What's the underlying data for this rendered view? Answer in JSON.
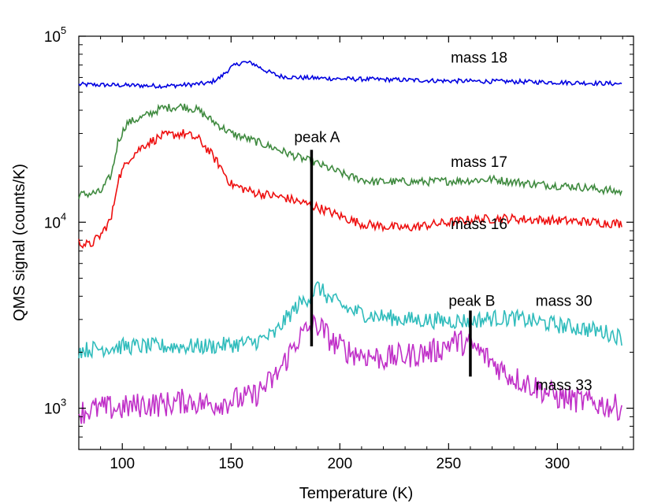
{
  "chart_data": {
    "type": "line",
    "xlabel": "Temperature (K)",
    "ylabel": "QMS signal (counts/K)",
    "xlim": [
      80,
      335
    ],
    "ylim": [
      600,
      100000
    ],
    "yscale": "log",
    "grid": false,
    "x_ticks": [
      {
        "value": 100,
        "label": "100"
      },
      {
        "value": 150,
        "label": "150"
      },
      {
        "value": 200,
        "label": "200"
      },
      {
        "value": 250,
        "label": "250"
      },
      {
        "value": 300,
        "label": "300"
      }
    ],
    "y_ticks": [
      {
        "value": 1000,
        "base": "10",
        "exp": "3"
      },
      {
        "value": 10000,
        "base": "10",
        "exp": "4"
      },
      {
        "value": 100000,
        "base": "10",
        "exp": "5"
      }
    ],
    "series": [
      {
        "name": "mass 18",
        "color": "#0000e0",
        "label_at": [
          251,
          72000
        ],
        "points": [
          [
            80,
            55000
          ],
          [
            100,
            54500
          ],
          [
            120,
            54000
          ],
          [
            130,
            54800
          ],
          [
            140,
            56000
          ],
          [
            145,
            60000
          ],
          [
            150,
            68000
          ],
          [
            155,
            72500
          ],
          [
            160,
            71500
          ],
          [
            165,
            66000
          ],
          [
            172,
            61000
          ],
          [
            180,
            60000
          ],
          [
            200,
            59000
          ],
          [
            220,
            58500
          ],
          [
            250,
            57500
          ],
          [
            280,
            57000
          ],
          [
            300,
            56500
          ],
          [
            330,
            55500
          ]
        ]
      },
      {
        "name": "mass 17",
        "color": "#3f8a3f",
        "label_at": [
          251,
          19800
        ],
        "points": [
          [
            80,
            14000
          ],
          [
            90,
            14500
          ],
          [
            95,
            18000
          ],
          [
            98,
            27000
          ],
          [
            102,
            34000
          ],
          [
            110,
            37000
          ],
          [
            118,
            41000
          ],
          [
            128,
            42000
          ],
          [
            135,
            40000
          ],
          [
            140,
            36000
          ],
          [
            150,
            30000
          ],
          [
            160,
            27500
          ],
          [
            170,
            25000
          ],
          [
            180,
            22500
          ],
          [
            188,
            21000
          ],
          [
            195,
            19500
          ],
          [
            205,
            17500
          ],
          [
            215,
            16500
          ],
          [
            225,
            16500
          ],
          [
            240,
            16500
          ],
          [
            260,
            16800
          ],
          [
            270,
            17000
          ],
          [
            290,
            16000
          ],
          [
            310,
            15500
          ],
          [
            330,
            14500
          ]
        ]
      },
      {
        "name": "mass 16",
        "color": "#ee1010",
        "label_at": [
          251,
          9200
        ],
        "points": [
          [
            80,
            7800
          ],
          [
            85,
            7500
          ],
          [
            90,
            8500
          ],
          [
            95,
            10500
          ],
          [
            98,
            17000
          ],
          [
            103,
            22000
          ],
          [
            110,
            26000
          ],
          [
            118,
            29000
          ],
          [
            128,
            30000
          ],
          [
            135,
            28000
          ],
          [
            140,
            24000
          ],
          [
            145,
            20000
          ],
          [
            150,
            16000
          ],
          [
            160,
            14500
          ],
          [
            175,
            13500
          ],
          [
            185,
            12500
          ],
          [
            190,
            12000
          ],
          [
            200,
            10800
          ],
          [
            210,
            9800
          ],
          [
            220,
            9500
          ],
          [
            230,
            9300
          ],
          [
            245,
            9800
          ],
          [
            260,
            10300
          ],
          [
            275,
            10500
          ],
          [
            290,
            10300
          ],
          [
            310,
            10100
          ],
          [
            330,
            9800
          ]
        ]
      },
      {
        "name": "mass 30",
        "color": "#30bcbc",
        "label_at": [
          290,
          3560
        ],
        "points": [
          [
            80,
            2050
          ],
          [
            100,
            2150
          ],
          [
            120,
            2150
          ],
          [
            140,
            2150
          ],
          [
            160,
            2250
          ],
          [
            170,
            2500
          ],
          [
            175,
            3000
          ],
          [
            180,
            3500
          ],
          [
            186,
            4000
          ],
          [
            190,
            4500
          ],
          [
            195,
            3900
          ],
          [
            205,
            3350
          ],
          [
            215,
            3150
          ],
          [
            230,
            3000
          ],
          [
            250,
            2950
          ],
          [
            260,
            2950
          ],
          [
            270,
            3050
          ],
          [
            280,
            3050
          ],
          [
            300,
            2800
          ],
          [
            320,
            2600
          ],
          [
            330,
            2400
          ]
        ]
      },
      {
        "name": "mass 33",
        "color": "#c030c8",
        "label_at": [
          290,
          1250
        ],
        "points": [
          [
            80,
            950
          ],
          [
            90,
            1000
          ],
          [
            100,
            1000
          ],
          [
            110,
            1050
          ],
          [
            120,
            1050
          ],
          [
            130,
            1100
          ],
          [
            140,
            1050
          ],
          [
            150,
            1100
          ],
          [
            160,
            1150
          ],
          [
            170,
            1450
          ],
          [
            175,
            1800
          ],
          [
            180,
            2300
          ],
          [
            186,
            2700
          ],
          [
            190,
            2800
          ],
          [
            197,
            2250
          ],
          [
            205,
            2000
          ],
          [
            220,
            1850
          ],
          [
            235,
            1950
          ],
          [
            245,
            2050
          ],
          [
            252,
            2300
          ],
          [
            260,
            2200
          ],
          [
            268,
            1850
          ],
          [
            278,
            1500
          ],
          [
            290,
            1300
          ],
          [
            300,
            1150
          ],
          [
            320,
            1050
          ],
          [
            330,
            1000
          ]
        ]
      }
    ],
    "annotations": [
      {
        "id": "peak-a",
        "label": "peak A",
        "x": 187,
        "y_from": 2150,
        "y_to": 24500,
        "label_at": [
          179,
          27000
        ]
      },
      {
        "id": "peak-b",
        "label": "peak B",
        "x": 260,
        "y_from": 1480,
        "y_to": 3350,
        "label_at": [
          250,
          3560
        ]
      }
    ]
  }
}
